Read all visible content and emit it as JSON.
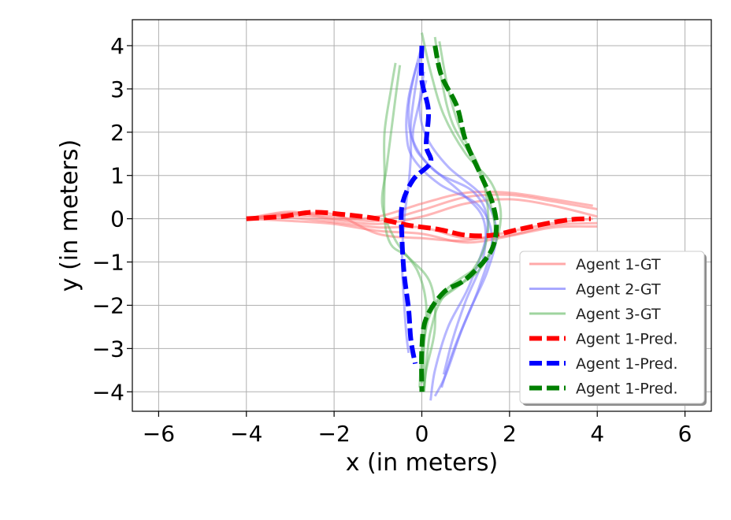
{
  "chart_data": {
    "type": "line",
    "xlabel": "x (in meters)",
    "ylabel": "y (in meters)",
    "xlim": [
      -6.6,
      6.6
    ],
    "ylim": [
      -4.45,
      4.6
    ],
    "xticks": [
      -6,
      -4,
      -2,
      0,
      2,
      4,
      6
    ],
    "yticks": [
      -4,
      -3,
      -2,
      -1,
      0,
      1,
      2,
      3,
      4
    ],
    "xtick_labels": [
      "−6",
      "−4",
      "−2",
      "0",
      "2",
      "4",
      "6"
    ],
    "ytick_labels": [
      "−4",
      "−3",
      "−2",
      "−1",
      "0",
      "1",
      "2",
      "3",
      "4"
    ],
    "grid": true,
    "legend_position": "lower-right",
    "legend": [
      {
        "label": "Agent 1-GT",
        "color": "#ff6e6e",
        "style": "solid"
      },
      {
        "label": "Agent 2-GT",
        "color": "#6e6eff",
        "style": "solid"
      },
      {
        "label": "Agent 3-GT",
        "color": "#5fb85f",
        "style": "solid"
      },
      {
        "label": "Agent 1-Pred.",
        "color": "#ff0000",
        "style": "dashed"
      },
      {
        "label": "Agent 1-Pred.",
        "color": "#0000ff",
        "style": "dashed"
      },
      {
        "label": "Agent 1-Pred.",
        "color": "#008000",
        "style": "dashed"
      }
    ],
    "series": [
      {
        "group": 0,
        "kind": "gt",
        "color": "#ff6e6e",
        "points": [
          [
            -4,
            0
          ],
          [
            -3,
            0.13
          ],
          [
            -2,
            0.05
          ],
          [
            -1,
            -0.05
          ],
          [
            0,
            0.2
          ],
          [
            1,
            0.5
          ],
          [
            2,
            0.55
          ],
          [
            3,
            0.4
          ],
          [
            4,
            0.22
          ]
        ]
      },
      {
        "group": 0,
        "kind": "gt",
        "color": "#ff6e6e",
        "points": [
          [
            -4,
            0
          ],
          [
            -3,
            0.08
          ],
          [
            -2,
            -0.02
          ],
          [
            -1,
            -0.12
          ],
          [
            0,
            0.05
          ],
          [
            1,
            0.35
          ],
          [
            2,
            0.45
          ],
          [
            3,
            0.3
          ],
          [
            4,
            0.05
          ]
        ]
      },
      {
        "group": 0,
        "kind": "gt",
        "color": "#ff6e6e",
        "points": [
          [
            -4,
            0
          ],
          [
            -3,
            0.02
          ],
          [
            -2,
            -0.08
          ],
          [
            -1,
            -0.2
          ],
          [
            0,
            -0.2
          ],
          [
            1,
            -0.45
          ],
          [
            2,
            -0.38
          ],
          [
            3,
            -0.15
          ],
          [
            4,
            -0.1
          ]
        ]
      },
      {
        "group": 0,
        "kind": "gt",
        "color": "#ff6e6e",
        "points": [
          [
            -4,
            0
          ],
          [
            -3,
            -0.05
          ],
          [
            -2,
            -0.12
          ],
          [
            -1,
            -0.28
          ],
          [
            0,
            -0.35
          ],
          [
            1,
            -0.55
          ],
          [
            2,
            -0.4
          ],
          [
            3,
            -0.2
          ],
          [
            4,
            -0.18
          ]
        ]
      },
      {
        "group": 0,
        "kind": "gt",
        "color": "#ff6e6e",
        "points": [
          [
            -4,
            0
          ],
          [
            -3,
            0.1
          ],
          [
            -2,
            0.1
          ],
          [
            -1,
            -0.35
          ],
          [
            0,
            -0.45
          ],
          [
            1,
            -0.5
          ],
          [
            2,
            -0.3
          ],
          [
            3,
            -0.1
          ],
          [
            3.9,
            0
          ]
        ]
      },
      {
        "group": 0,
        "kind": "gt",
        "color": "#ff6e6e",
        "points": [
          [
            -4,
            0
          ],
          [
            -3,
            0.16
          ],
          [
            -2,
            0.0
          ],
          [
            -1,
            0.05
          ],
          [
            0,
            0.35
          ],
          [
            1,
            0.6
          ],
          [
            2,
            0.6
          ],
          [
            3,
            0.45
          ],
          [
            3.9,
            0.3
          ]
        ]
      },
      {
        "group": 1,
        "kind": "gt",
        "color": "#6e6eff",
        "points": [
          [
            0,
            4
          ],
          [
            -0.2,
            3.2
          ],
          [
            -0.3,
            2.5
          ],
          [
            -0.2,
            1.8
          ],
          [
            0.3,
            1.1
          ],
          [
            1.2,
            0.6
          ],
          [
            1.5,
            -0.2
          ],
          [
            1.1,
            -1.5
          ],
          [
            0.6,
            -2.5
          ],
          [
            0.3,
            -3.5
          ],
          [
            0.2,
            -4.2
          ]
        ]
      },
      {
        "group": 1,
        "kind": "gt",
        "color": "#6e6eff",
        "points": [
          [
            -0.1,
            3.6
          ],
          [
            -0.3,
            2.8
          ],
          [
            -0.35,
            2.0
          ],
          [
            -0.2,
            1.4
          ],
          [
            0.4,
            0.8
          ],
          [
            1.3,
            0.3
          ],
          [
            1.6,
            -0.5
          ],
          [
            1.3,
            -1.6
          ],
          [
            0.9,
            -2.6
          ],
          [
            0.55,
            -3.6
          ],
          [
            0.3,
            -4.1
          ]
        ]
      },
      {
        "group": 1,
        "kind": "gt",
        "color": "#6e6eff",
        "points": [
          [
            0.1,
            3.2
          ],
          [
            -0.1,
            2.5
          ],
          [
            -0.2,
            1.8
          ],
          [
            0.1,
            1.3
          ],
          [
            0.9,
            0.6
          ],
          [
            1.4,
            0.0
          ],
          [
            1.4,
            -0.9
          ],
          [
            1.0,
            -1.9
          ],
          [
            0.7,
            -2.8
          ],
          [
            0.5,
            -3.6
          ]
        ]
      },
      {
        "group": 1,
        "kind": "gt",
        "color": "#6e6eff",
        "points": [
          [
            0,
            3.9
          ],
          [
            -0.15,
            3.0
          ],
          [
            -0.25,
            2.2
          ],
          [
            -0.25,
            1.5
          ],
          [
            -0.3,
            0.8
          ],
          [
            -0.4,
            0.0
          ],
          [
            -0.45,
            -1.0
          ],
          [
            -0.4,
            -2.0
          ],
          [
            -0.35,
            -2.7
          ],
          [
            -0.3,
            -3.1
          ]
        ]
      },
      {
        "group": 1,
        "kind": "gt",
        "color": "#6e6eff",
        "points": [
          [
            0.05,
            3.4
          ],
          [
            -0.05,
            2.6
          ],
          [
            0.1,
            1.9
          ],
          [
            0.6,
            1.2
          ],
          [
            1.4,
            0.5
          ],
          [
            1.7,
            -0.3
          ],
          [
            1.5,
            -1.2
          ],
          [
            1.1,
            -2.1
          ],
          [
            0.7,
            -3.1
          ],
          [
            0.45,
            -3.9
          ]
        ]
      },
      {
        "group": 2,
        "kind": "gt",
        "color": "#5fb85f",
        "points": [
          [
            -0.6,
            3.6
          ],
          [
            -0.7,
            3.0
          ],
          [
            -0.85,
            2.0
          ],
          [
            -0.85,
            1.0
          ],
          [
            -0.85,
            0.0
          ],
          [
            -0.7,
            -0.6
          ],
          [
            -0.3,
            -0.9
          ],
          [
            0.2,
            -1.5
          ],
          [
            0.3,
            -2.5
          ],
          [
            0.1,
            -3.5
          ],
          [
            0.05,
            -4.0
          ]
        ]
      },
      {
        "group": 2,
        "kind": "gt",
        "color": "#5fb85f",
        "points": [
          [
            -0.5,
            3.55
          ],
          [
            -0.6,
            2.8
          ],
          [
            -0.7,
            2.0
          ],
          [
            -0.8,
            1.2
          ],
          [
            -0.9,
            0.3
          ],
          [
            -0.6,
            -0.5
          ],
          [
            -0.1,
            -1.2
          ],
          [
            0.1,
            -2.0
          ],
          [
            0.05,
            -3.0
          ],
          [
            0.05,
            -3.9
          ]
        ]
      },
      {
        "group": 2,
        "kind": "gt",
        "color": "#5fb85f",
        "points": [
          [
            0,
            4.3
          ],
          [
            0.2,
            3.4
          ],
          [
            0.5,
            2.4
          ],
          [
            1.0,
            1.5
          ],
          [
            1.6,
            0.8
          ],
          [
            1.8,
            0.0
          ],
          [
            1.5,
            -0.9
          ],
          [
            0.6,
            -1.6
          ],
          [
            0.1,
            -2.3
          ],
          [
            0,
            -3.0
          ],
          [
            -0.05,
            -3.9
          ]
        ]
      },
      {
        "group": 2,
        "kind": "gt",
        "color": "#5fb85f",
        "points": [
          [
            0.3,
            4.2
          ],
          [
            0.45,
            3.2
          ],
          [
            0.7,
            2.2
          ],
          [
            1.2,
            1.3
          ],
          [
            1.55,
            0.4
          ],
          [
            1.65,
            -0.4
          ],
          [
            1.3,
            -1.2
          ],
          [
            0.5,
            -1.8
          ],
          [
            0.2,
            -2.6
          ],
          [
            0.1,
            -3.4
          ],
          [
            0.05,
            -4.0
          ]
        ]
      },
      {
        "group": 2,
        "kind": "gt",
        "color": "#5fb85f",
        "points": [
          [
            0.4,
            4.1
          ],
          [
            0.6,
            3.0
          ],
          [
            0.9,
            2.0
          ],
          [
            1.3,
            1.2
          ],
          [
            1.5,
            0.3
          ],
          [
            1.45,
            -0.6
          ],
          [
            1.0,
            -1.4
          ],
          [
            0.3,
            -2.0
          ],
          [
            0.05,
            -2.8
          ],
          [
            0,
            -3.8
          ]
        ]
      },
      {
        "group": 3,
        "kind": "pred",
        "color": "#ff0000",
        "points": [
          [
            -4,
            0
          ],
          [
            -3.2,
            0.05
          ],
          [
            -2.5,
            0.15
          ],
          [
            -1.8,
            0.1
          ],
          [
            -1.0,
            0.0
          ],
          [
            -0.3,
            -0.15
          ],
          [
            0.4,
            -0.25
          ],
          [
            1.0,
            -0.38
          ],
          [
            1.6,
            -0.38
          ],
          [
            2.2,
            -0.25
          ],
          [
            2.8,
            -0.12
          ],
          [
            3.4,
            -0.02
          ],
          [
            3.85,
            0.0
          ]
        ]
      },
      {
        "group": 4,
        "kind": "pred",
        "color": "#0000ff",
        "points": [
          [
            0,
            4.0
          ],
          [
            0.0,
            3.2
          ],
          [
            0.15,
            2.5
          ],
          [
            0.1,
            1.7
          ],
          [
            0.2,
            1.3
          ],
          [
            -0.2,
            0.9
          ],
          [
            -0.45,
            0.3
          ],
          [
            -0.45,
            -0.5
          ],
          [
            -0.4,
            -1.3
          ],
          [
            -0.3,
            -2.1
          ],
          [
            -0.25,
            -2.8
          ],
          [
            -0.15,
            -3.35
          ]
        ]
      },
      {
        "group": 5,
        "kind": "pred",
        "color": "#008000",
        "points": [
          [
            0.3,
            4.0
          ],
          [
            0.45,
            3.3
          ],
          [
            0.8,
            2.6
          ],
          [
            1.0,
            1.8
          ],
          [
            1.35,
            1.0
          ],
          [
            1.6,
            0.4
          ],
          [
            1.7,
            -0.2
          ],
          [
            1.55,
            -0.8
          ],
          [
            1.0,
            -1.4
          ],
          [
            0.5,
            -1.7
          ],
          [
            0.1,
            -2.3
          ],
          [
            0.0,
            -3.0
          ],
          [
            0.0,
            -4.0
          ]
        ]
      }
    ]
  }
}
